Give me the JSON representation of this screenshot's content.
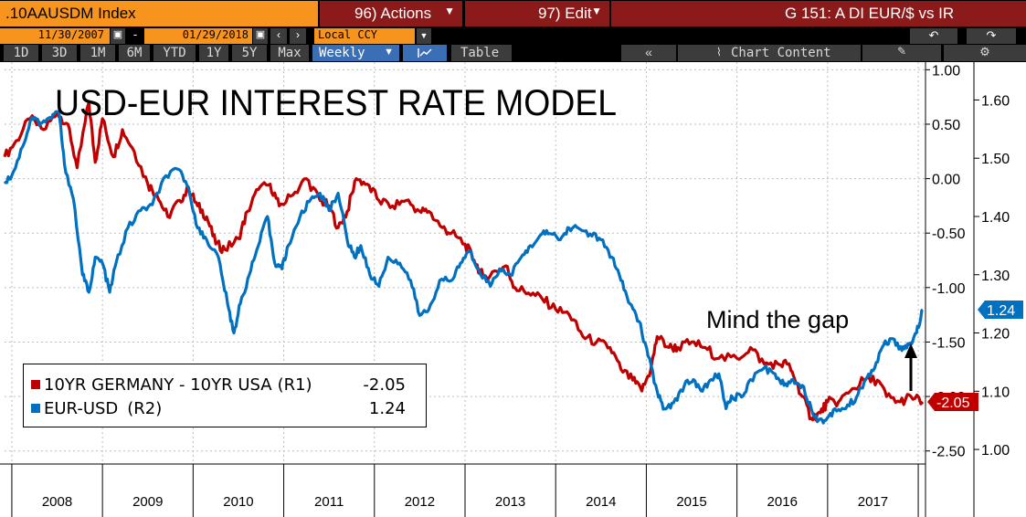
{
  "toolbar": {
    "ticker": ".10AAUSDM Index",
    "actions_label": "96) Actions",
    "edit_label": "97) Edit",
    "page_title": "G 151: A DI EUR/$ vs IR",
    "start_date": "11/30/2007",
    "end_date": "01/29/2018",
    "date_sep": "-",
    "currency": "Local CCY",
    "periods": [
      "1D",
      "3D",
      "1M",
      "6M",
      "YTD",
      "1Y",
      "5Y",
      "Max"
    ],
    "frequency": "Weekly",
    "table_label": "Table",
    "chart_content_label": "Chart Content"
  },
  "chart_data": {
    "type": "line",
    "title": "USD-EUR INTEREST RATE MODEL",
    "annotation": "Mind the gap",
    "x_range": [
      2007.92,
      2018.08
    ],
    "year_labels": [
      "2008",
      "2009",
      "2010",
      "2011",
      "2012",
      "2013",
      "2014",
      "2015",
      "2016",
      "2017"
    ],
    "left_axis_labels": [
      "1.00",
      "0.50",
      "0.00",
      "-0.50",
      "-1.00",
      "-1.50",
      "-2.00",
      "-2.50"
    ],
    "left_axis_values": [
      1.0,
      0.5,
      0.0,
      -0.5,
      -1.0,
      -1.5,
      -2.0,
      -2.5
    ],
    "left_axis_range": [
      -2.62,
      1.07
    ],
    "right_axis_labels": [
      "1.60",
      "1.50",
      "1.40",
      "1.30",
      "1.20",
      "1.10",
      "1.00"
    ],
    "right_axis_values": [
      1.6,
      1.5,
      1.4,
      1.3,
      1.2,
      1.1,
      1.0
    ],
    "right_axis_range": [
      0.975,
      1.665
    ],
    "series": [
      {
        "name": "10YR GERMANY - 10YR USA",
        "axis": "R1",
        "color": "#c00000",
        "last_value": "-2.05",
        "points": [
          [
            2007.92,
            0.2
          ],
          [
            2008.05,
            0.35
          ],
          [
            2008.2,
            0.55
          ],
          [
            2008.35,
            0.45
          ],
          [
            2008.5,
            0.6
          ],
          [
            2008.62,
            0.5
          ],
          [
            2008.72,
            0.1
          ],
          [
            2008.85,
            0.7
          ],
          [
            2008.92,
            0.15
          ],
          [
            2009.0,
            0.55
          ],
          [
            2009.12,
            0.2
          ],
          [
            2009.22,
            0.45
          ],
          [
            2009.35,
            0.25
          ],
          [
            2009.5,
            -0.05
          ],
          [
            2009.6,
            -0.15
          ],
          [
            2009.72,
            -0.35
          ],
          [
            2009.85,
            -0.2
          ],
          [
            2009.95,
            -0.1
          ],
          [
            2010.05,
            -0.25
          ],
          [
            2010.15,
            -0.35
          ],
          [
            2010.25,
            -0.6
          ],
          [
            2010.35,
            -0.65
          ],
          [
            2010.5,
            -0.55
          ],
          [
            2010.6,
            -0.3
          ],
          [
            2010.72,
            -0.1
          ],
          [
            2010.85,
            -0.05
          ],
          [
            2010.95,
            -0.25
          ],
          [
            2011.1,
            -0.15
          ],
          [
            2011.25,
            0.0
          ],
          [
            2011.4,
            -0.2
          ],
          [
            2011.5,
            -0.25
          ],
          [
            2011.6,
            -0.45
          ],
          [
            2011.7,
            -0.3
          ],
          [
            2011.8,
            0.0
          ],
          [
            2011.92,
            -0.05
          ],
          [
            2012.05,
            -0.2
          ],
          [
            2012.2,
            -0.25
          ],
          [
            2012.35,
            -0.2
          ],
          [
            2012.5,
            -0.3
          ],
          [
            2012.6,
            -0.3
          ],
          [
            2012.75,
            -0.45
          ],
          [
            2012.85,
            -0.5
          ],
          [
            2013.0,
            -0.6
          ],
          [
            2013.1,
            -0.75
          ],
          [
            2013.2,
            -0.9
          ],
          [
            2013.35,
            -0.85
          ],
          [
            2013.45,
            -0.8
          ],
          [
            2013.55,
            -1.0
          ],
          [
            2013.7,
            -1.05
          ],
          [
            2013.85,
            -1.1
          ],
          [
            2014.0,
            -1.2
          ],
          [
            2014.15,
            -1.25
          ],
          [
            2014.3,
            -1.45
          ],
          [
            2014.45,
            -1.5
          ],
          [
            2014.6,
            -1.55
          ],
          [
            2014.72,
            -1.75
          ],
          [
            2014.85,
            -1.85
          ],
          [
            2014.95,
            -1.95
          ],
          [
            2015.05,
            -1.75
          ],
          [
            2015.12,
            -1.45
          ],
          [
            2015.25,
            -1.55
          ],
          [
            2015.35,
            -1.55
          ],
          [
            2015.5,
            -1.5
          ],
          [
            2015.65,
            -1.55
          ],
          [
            2015.8,
            -1.65
          ],
          [
            2016.0,
            -1.65
          ],
          [
            2016.15,
            -1.55
          ],
          [
            2016.3,
            -1.7
          ],
          [
            2016.45,
            -1.7
          ],
          [
            2016.55,
            -1.7
          ],
          [
            2016.62,
            -1.8
          ],
          [
            2016.72,
            -2.0
          ],
          [
            2016.82,
            -2.2
          ],
          [
            2016.92,
            -2.15
          ],
          [
            2017.0,
            -2.05
          ],
          [
            2017.12,
            -2.05
          ],
          [
            2017.25,
            -1.95
          ],
          [
            2017.4,
            -1.85
          ],
          [
            2017.55,
            -1.85
          ],
          [
            2017.65,
            -2.0
          ],
          [
            2017.8,
            -2.05
          ],
          [
            2017.92,
            -2.0
          ],
          [
            2018.05,
            -2.05
          ]
        ]
      },
      {
        "name": "EUR-USD",
        "axis": "R2",
        "color": "#0070c0",
        "last_value": "1.24",
        "points": [
          [
            2007.92,
            1.46
          ],
          [
            2008.0,
            1.47
          ],
          [
            2008.12,
            1.52
          ],
          [
            2008.22,
            1.57
          ],
          [
            2008.32,
            1.56
          ],
          [
            2008.42,
            1.57
          ],
          [
            2008.52,
            1.58
          ],
          [
            2008.58,
            1.49
          ],
          [
            2008.68,
            1.43
          ],
          [
            2008.78,
            1.3
          ],
          [
            2008.85,
            1.27
          ],
          [
            2008.92,
            1.33
          ],
          [
            2009.0,
            1.32
          ],
          [
            2009.08,
            1.27
          ],
          [
            2009.15,
            1.32
          ],
          [
            2009.28,
            1.38
          ],
          [
            2009.42,
            1.41
          ],
          [
            2009.55,
            1.42
          ],
          [
            2009.7,
            1.47
          ],
          [
            2009.85,
            1.48
          ],
          [
            2009.95,
            1.45
          ],
          [
            2010.05,
            1.38
          ],
          [
            2010.15,
            1.36
          ],
          [
            2010.28,
            1.33
          ],
          [
            2010.38,
            1.25
          ],
          [
            2010.45,
            1.2
          ],
          [
            2010.52,
            1.25
          ],
          [
            2010.62,
            1.3
          ],
          [
            2010.72,
            1.35
          ],
          [
            2010.82,
            1.4
          ],
          [
            2010.9,
            1.32
          ],
          [
            2010.98,
            1.31
          ],
          [
            2011.05,
            1.35
          ],
          [
            2011.18,
            1.4
          ],
          [
            2011.3,
            1.43
          ],
          [
            2011.4,
            1.44
          ],
          [
            2011.5,
            1.41
          ],
          [
            2011.6,
            1.44
          ],
          [
            2011.7,
            1.36
          ],
          [
            2011.78,
            1.33
          ],
          [
            2011.85,
            1.35
          ],
          [
            2011.95,
            1.3
          ],
          [
            2012.05,
            1.28
          ],
          [
            2012.15,
            1.33
          ],
          [
            2012.28,
            1.32
          ],
          [
            2012.4,
            1.29
          ],
          [
            2012.5,
            1.23
          ],
          [
            2012.6,
            1.24
          ],
          [
            2012.72,
            1.29
          ],
          [
            2012.85,
            1.29
          ],
          [
            2012.95,
            1.32
          ],
          [
            2013.05,
            1.34
          ],
          [
            2013.15,
            1.31
          ],
          [
            2013.28,
            1.28
          ],
          [
            2013.38,
            1.31
          ],
          [
            2013.5,
            1.3
          ],
          [
            2013.62,
            1.33
          ],
          [
            2013.72,
            1.35
          ],
          [
            2013.85,
            1.37
          ],
          [
            2013.95,
            1.37
          ],
          [
            2014.05,
            1.36
          ],
          [
            2014.15,
            1.38
          ],
          [
            2014.25,
            1.38
          ],
          [
            2014.38,
            1.37
          ],
          [
            2014.5,
            1.36
          ],
          [
            2014.62,
            1.33
          ],
          [
            2014.72,
            1.29
          ],
          [
            2014.82,
            1.25
          ],
          [
            2014.92,
            1.22
          ],
          [
            2015.02,
            1.16
          ],
          [
            2015.12,
            1.1
          ],
          [
            2015.2,
            1.07
          ],
          [
            2015.3,
            1.08
          ],
          [
            2015.42,
            1.11
          ],
          [
            2015.52,
            1.12
          ],
          [
            2015.62,
            1.1
          ],
          [
            2015.72,
            1.12
          ],
          [
            2015.8,
            1.13
          ],
          [
            2015.88,
            1.07
          ],
          [
            2015.95,
            1.09
          ],
          [
            2016.05,
            1.09
          ],
          [
            2016.15,
            1.12
          ],
          [
            2016.3,
            1.14
          ],
          [
            2016.42,
            1.13
          ],
          [
            2016.52,
            1.11
          ],
          [
            2016.62,
            1.12
          ],
          [
            2016.72,
            1.11
          ],
          [
            2016.82,
            1.07
          ],
          [
            2016.9,
            1.05
          ],
          [
            2016.98,
            1.05
          ],
          [
            2017.08,
            1.07
          ],
          [
            2017.2,
            1.07
          ],
          [
            2017.32,
            1.09
          ],
          [
            2017.42,
            1.12
          ],
          [
            2017.52,
            1.14
          ],
          [
            2017.62,
            1.18
          ],
          [
            2017.72,
            1.19
          ],
          [
            2017.82,
            1.17
          ],
          [
            2017.9,
            1.18
          ],
          [
            2017.98,
            1.2
          ],
          [
            2018.05,
            1.24
          ]
        ]
      }
    ]
  }
}
